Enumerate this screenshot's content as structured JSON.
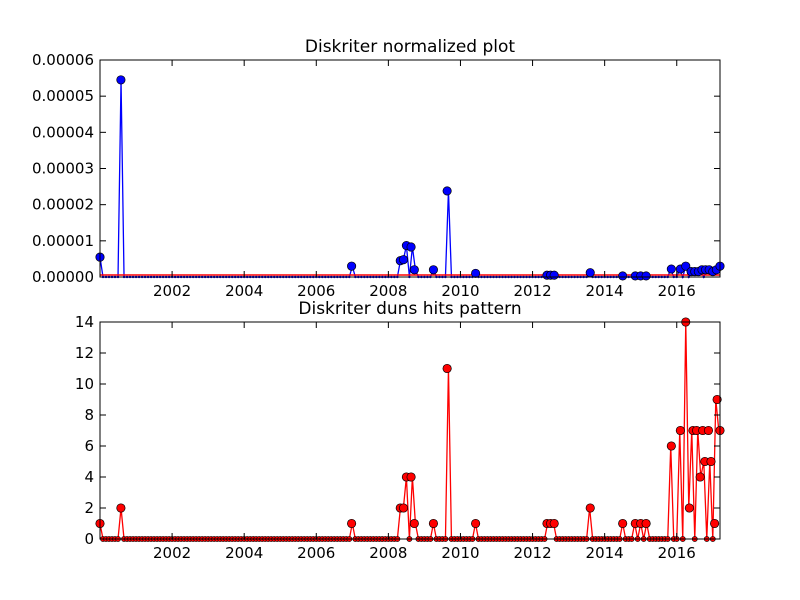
{
  "chart_data": [
    {
      "type": "line",
      "title": "Diskriter normalized plot",
      "xlabel": "",
      "ylabel": "",
      "xlim": [
        2000.0,
        2017.2
      ],
      "ylim": [
        0,
        6e-05
      ],
      "grid": false,
      "xticks": [
        "2002",
        "2004",
        "2006",
        "2008",
        "2010",
        "2012",
        "2014",
        "2016"
      ],
      "yticks": [
        "0.00000",
        "0.00001",
        "0.00002",
        "0.00003",
        "0.00004",
        "0.00005",
        "0.00006"
      ],
      "colors": {
        "line": "#0000ff",
        "marker": "#0000ff",
        "baseline": "#ff0000"
      },
      "points": [
        {
          "x": 2000.0,
          "y": 5.5e-06
        },
        {
          "x": 2000.58,
          "y": 5.45e-05
        },
        {
          "x": 2006.98,
          "y": 3e-06
        },
        {
          "x": 2008.33,
          "y": 4.5e-06
        },
        {
          "x": 2008.42,
          "y": 4.8e-06
        },
        {
          "x": 2008.5,
          "y": 8.7e-06
        },
        {
          "x": 2008.63,
          "y": 8.3e-06
        },
        {
          "x": 2008.72,
          "y": 2e-06
        },
        {
          "x": 2009.25,
          "y": 2e-06
        },
        {
          "x": 2009.63,
          "y": 2.38e-05
        },
        {
          "x": 2010.42,
          "y": 1e-06
        },
        {
          "x": 2012.4,
          "y": 5e-07
        },
        {
          "x": 2012.5,
          "y": 5e-07
        },
        {
          "x": 2012.6,
          "y": 5e-07
        },
        {
          "x": 2013.6,
          "y": 1.2e-06
        },
        {
          "x": 2014.5,
          "y": 3e-07
        },
        {
          "x": 2014.85,
          "y": 3e-07
        },
        {
          "x": 2015.0,
          "y": 3e-07
        },
        {
          "x": 2015.15,
          "y": 3e-07
        },
        {
          "x": 2015.85,
          "y": 2.2e-06
        },
        {
          "x": 2016.1,
          "y": 2.2e-06
        },
        {
          "x": 2016.25,
          "y": 3e-06
        },
        {
          "x": 2016.4,
          "y": 1.5e-06
        },
        {
          "x": 2016.5,
          "y": 1.5e-06
        },
        {
          "x": 2016.6,
          "y": 1.5e-06
        },
        {
          "x": 2016.7,
          "y": 2e-06
        },
        {
          "x": 2016.8,
          "y": 2e-06
        },
        {
          "x": 2016.9,
          "y": 2e-06
        },
        {
          "x": 2017.0,
          "y": 1.5e-06
        },
        {
          "x": 2017.1,
          "y": 2e-06
        },
        {
          "x": 2017.2,
          "y": 3e-06
        }
      ]
    },
    {
      "type": "line",
      "title": "Diskriter duns hits pattern",
      "xlabel": "",
      "ylabel": "",
      "xlim": [
        2000.0,
        2017.2
      ],
      "ylim": [
        0,
        14
      ],
      "grid": false,
      "xticks": [
        "2002",
        "2004",
        "2006",
        "2008",
        "2010",
        "2012",
        "2014",
        "2016"
      ],
      "yticks": [
        "0",
        "2",
        "4",
        "6",
        "8",
        "10",
        "12",
        "14"
      ],
      "colors": {
        "line": "#ff0000",
        "marker": "#ff0000"
      },
      "points": [
        {
          "x": 2000.0,
          "y": 1
        },
        {
          "x": 2000.58,
          "y": 2
        },
        {
          "x": 2006.98,
          "y": 1
        },
        {
          "x": 2008.33,
          "y": 2
        },
        {
          "x": 2008.42,
          "y": 2
        },
        {
          "x": 2008.5,
          "y": 4
        },
        {
          "x": 2008.63,
          "y": 4
        },
        {
          "x": 2008.72,
          "y": 1
        },
        {
          "x": 2009.25,
          "y": 1
        },
        {
          "x": 2009.63,
          "y": 11
        },
        {
          "x": 2010.42,
          "y": 1
        },
        {
          "x": 2012.4,
          "y": 1
        },
        {
          "x": 2012.5,
          "y": 1
        },
        {
          "x": 2012.6,
          "y": 1
        },
        {
          "x": 2013.6,
          "y": 2
        },
        {
          "x": 2014.5,
          "y": 1
        },
        {
          "x": 2014.85,
          "y": 1
        },
        {
          "x": 2015.0,
          "y": 1
        },
        {
          "x": 2015.15,
          "y": 1
        },
        {
          "x": 2015.85,
          "y": 6
        },
        {
          "x": 2016.1,
          "y": 7
        },
        {
          "x": 2016.25,
          "y": 14
        },
        {
          "x": 2016.35,
          "y": 2
        },
        {
          "x": 2016.45,
          "y": 7
        },
        {
          "x": 2016.55,
          "y": 7
        },
        {
          "x": 2016.65,
          "y": 4
        },
        {
          "x": 2016.72,
          "y": 7
        },
        {
          "x": 2016.78,
          "y": 5
        },
        {
          "x": 2016.88,
          "y": 7
        },
        {
          "x": 2016.95,
          "y": 5
        },
        {
          "x": 2017.05,
          "y": 1
        },
        {
          "x": 2017.12,
          "y": 9
        },
        {
          "x": 2017.2,
          "y": 7
        }
      ]
    }
  ]
}
